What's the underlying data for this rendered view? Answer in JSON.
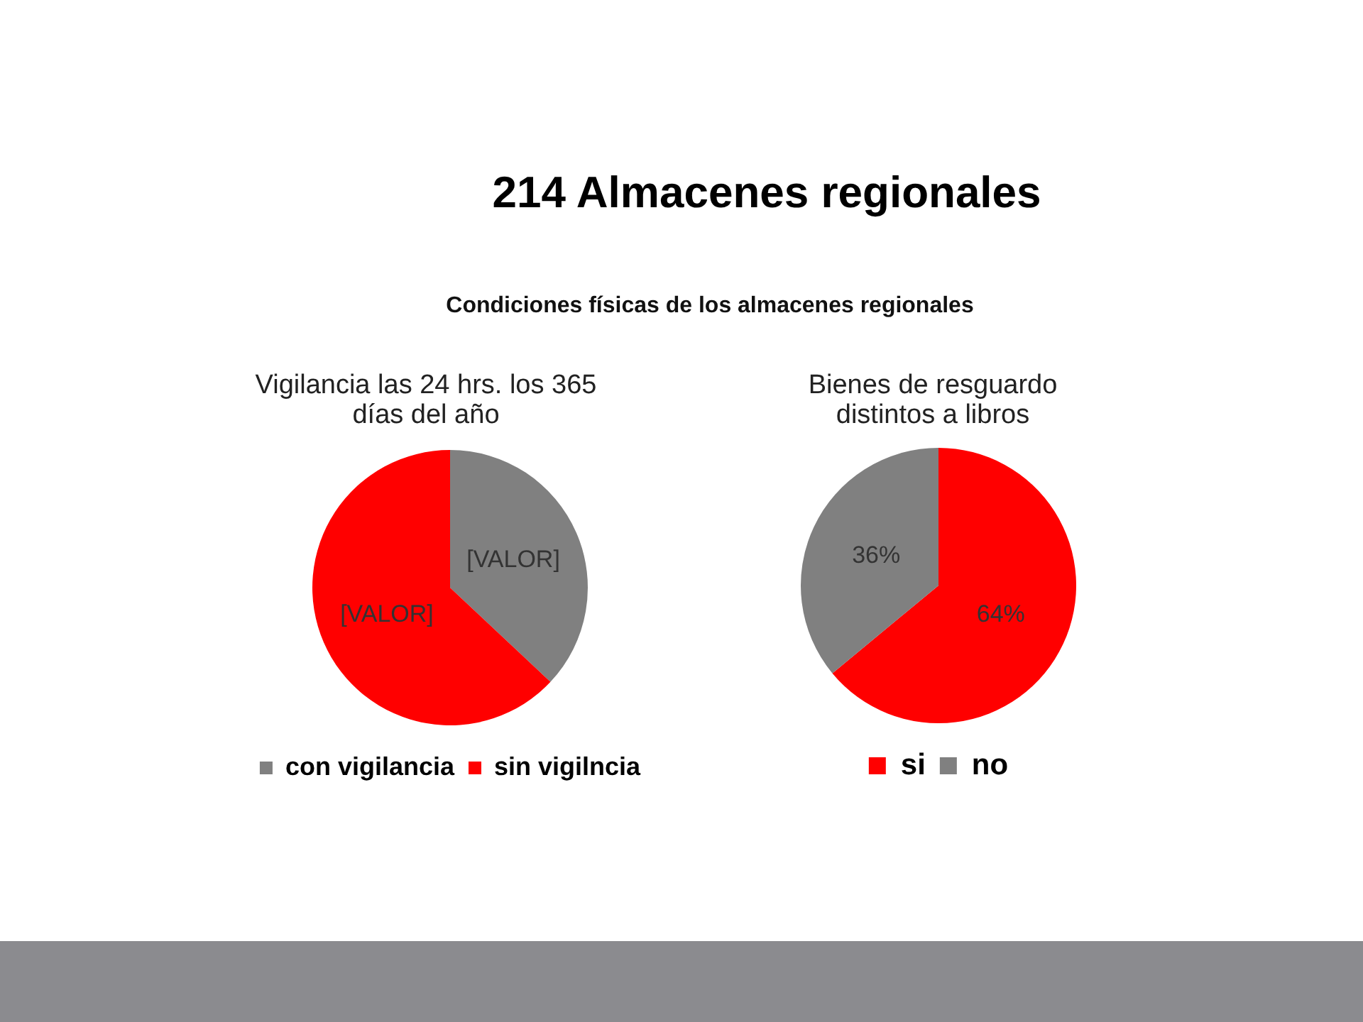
{
  "chart_data": [
    {
      "type": "other",
      "title": "214 Almacenes regionales",
      "subtitle": "Condiciones físicas de los almacenes regionales"
    },
    {
      "type": "pie",
      "title": "Vigilancia las 24 hrs. los 365 días del año",
      "categories": [
        "con vigilancia",
        "sin vigilncia"
      ],
      "values": [
        37,
        63
      ],
      "colors": [
        "#808080",
        "#ff0000"
      ],
      "value_labels": [
        "[VALOR]",
        "[VALOR]"
      ],
      "legend": "bottom"
    },
    {
      "type": "pie",
      "title": "Bienes de resguardo distintos a libros",
      "categories": [
        "si",
        "no"
      ],
      "values": [
        64,
        36
      ],
      "colors": [
        "#ff0000",
        "#808080"
      ],
      "value_labels": [
        "64%",
        "36%"
      ],
      "legend": "bottom"
    }
  ]
}
